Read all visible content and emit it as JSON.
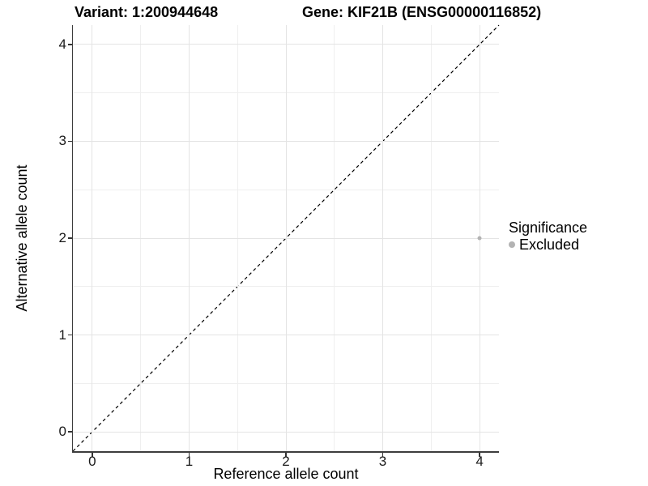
{
  "figure": {
    "title_left": "Variant: 1:200944648",
    "title_right": "Gene: KIF21B (ENSG00000116852)"
  },
  "chart_data": {
    "type": "scatter",
    "title": "Variant: 1:200944648  /  Gene: KIF21B (ENSG00000116852)",
    "xlabel": "Reference allele count",
    "ylabel": "Alternative allele count",
    "xlim": [
      -0.2,
      4.2
    ],
    "ylim": [
      -0.2,
      4.2
    ],
    "xticks": [
      0,
      1,
      2,
      3,
      4
    ],
    "yticks": [
      0,
      1,
      2,
      3,
      4
    ],
    "x_minor_gridlines": [
      0.5,
      1.5,
      2.5,
      3.5
    ],
    "y_minor_gridlines": [
      0.5,
      1.5,
      2.5,
      3.5
    ],
    "grid": "major+minor",
    "reference_line": {
      "type": "identity y=x",
      "style": "dashed",
      "color": "#000000"
    },
    "series": [
      {
        "name": "Excluded",
        "marker": "circle",
        "color": "#b3b3b3",
        "points": [
          {
            "x": 4,
            "y": 2
          }
        ]
      }
    ],
    "legend": {
      "title": "Significance",
      "position": "right",
      "entries": [
        {
          "label": "Excluded",
          "color": "#b3b3b3"
        }
      ]
    }
  },
  "colors": {
    "grid_major": "#e4e4e4",
    "grid_minor": "#efefef",
    "axis_line": "#3d3d3d",
    "tick_mark": "#333333",
    "axis_text": "#1a1a1a",
    "point": "#b3b3b3",
    "dashed_line": "#000000",
    "background": "#ffffff"
  }
}
